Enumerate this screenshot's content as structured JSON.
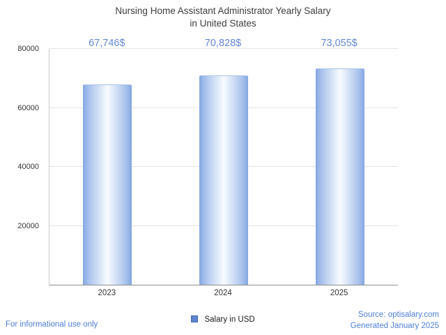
{
  "title": {
    "line1": "Nursing Home Assistant Administrator Yearly Salary",
    "line2": "in United States"
  },
  "chart_data": {
    "type": "bar",
    "title": "Nursing Home Assistant Administrator Yearly Salary in United States",
    "categories": [
      "2023",
      "2024",
      "2025"
    ],
    "values": [
      67746,
      70828,
      73055
    ],
    "value_labels": [
      "67,746$",
      "70,828$",
      "73,055$"
    ],
    "xlabel": "",
    "ylabel": "",
    "ylim": [
      0,
      80000
    ],
    "yticks": [
      20000,
      40000,
      60000,
      80000
    ],
    "grid": true,
    "legend": "Salary in USD",
    "legend_position": "bottom"
  },
  "footer": {
    "left": "For informational use only",
    "source": "Source: optisalary.com",
    "generated": "Generated January 2025"
  },
  "colors": {
    "accent_blue": "#6286d6",
    "bar_edge": "#84a7e1",
    "bar_center": "#f7fbff",
    "legend_swatch": "#5d84cf",
    "footer_text": "#4f7fd9",
    "gridline": "#e4e4e4",
    "axis_line": "#8e8e8e",
    "title_text": "#3d3d3d"
  }
}
